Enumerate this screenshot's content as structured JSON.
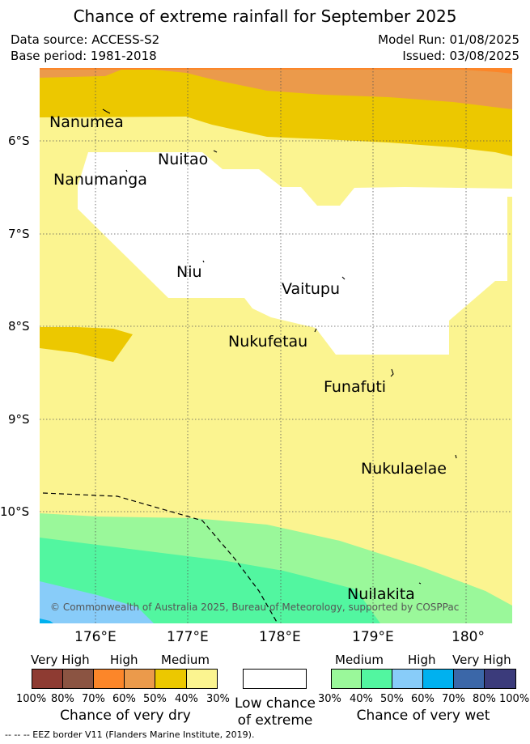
{
  "title": "Chance of extreme rainfall for September 2025",
  "meta": {
    "data_source": "Data source: ACCESS-S2",
    "base_period": "Base period: 1981-2018",
    "model_run": "Model Run: 01/08/2025",
    "issued": "Issued: 03/08/2025"
  },
  "map": {
    "lat_labels": [
      "6°S",
      "7°S",
      "8°S",
      "9°S",
      "10°S"
    ],
    "lon_labels": [
      "176°E",
      "177°E",
      "178°E",
      "179°E",
      "180°"
    ],
    "islands": [
      "Nanumea",
      "Nuitao",
      "Nanumanga",
      "Niu",
      "Vaitupu",
      "Nukufetau",
      "Funafuti",
      "Nukulaelae",
      "Nuilakita"
    ],
    "credit": "© Commonwealth of Australia 2025, Bureau of Meteorology, supported by COSPPac",
    "colors": {
      "dry_100_80": "#8e3b32",
      "dry_80_70": "#8b5442",
      "dry_70_60": "#fc8629",
      "dry_60_50": "#eb9a4b",
      "dry_50_40": "#ecc800",
      "dry_40_30": "#fbf490",
      "wet_30_40": "#9af89a",
      "wet_40_50": "#52f6a0",
      "wet_50_60": "#88ccf9",
      "wet_60_70": "#00b1ef",
      "wet_70_80": "#3b67a8",
      "wet_80_100": "#3b3b7b"
    }
  },
  "legend": {
    "dry_headers": [
      "Very High",
      "High",
      "Medium"
    ],
    "dry_percents": [
      "100%",
      "80%",
      "70%",
      "60%",
      "50%",
      "40%",
      "30%"
    ],
    "dry_caption": "Chance of very dry",
    "low_caption_1": "Low chance",
    "low_caption_2": "of extreme",
    "wet_headers": [
      "Medium",
      "High",
      "Very High"
    ],
    "wet_percents": [
      "30%",
      "40%",
      "50%",
      "60%",
      "70%",
      "80%",
      "100%"
    ],
    "wet_caption": "Chance of very wet"
  },
  "footer": "-- -- -- EEZ border V11 (Flanders Marine Institute, 2019)."
}
